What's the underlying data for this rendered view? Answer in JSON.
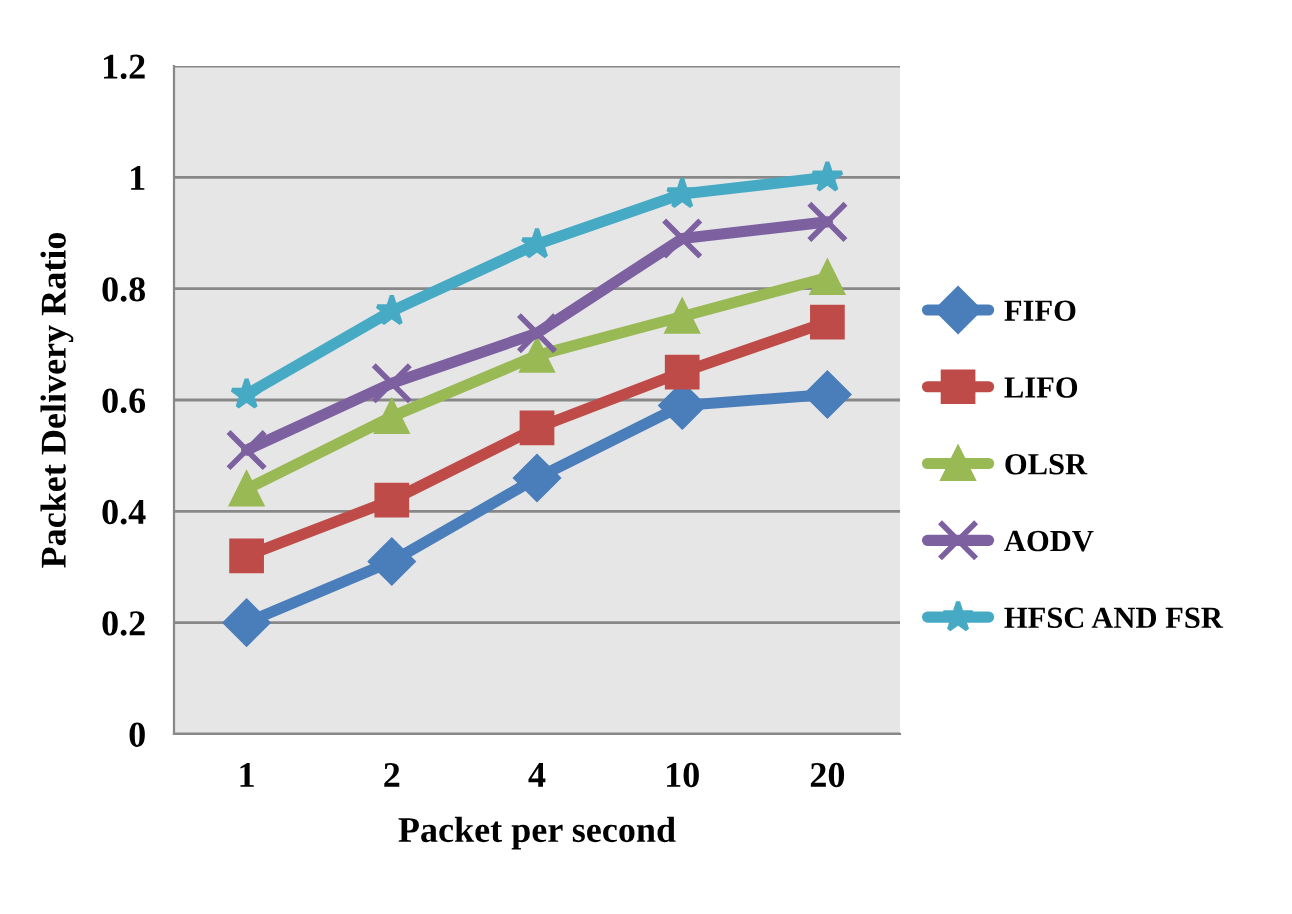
{
  "chart_data": {
    "type": "line",
    "xlabel": "Packet per second",
    "ylabel": "Packet Delivery Ratio",
    "categories": [
      "1",
      "2",
      "4",
      "10",
      "20"
    ],
    "series": [
      {
        "name": "FIFO",
        "color": "#4a7ebb",
        "marker": "diamond",
        "values": [
          0.2,
          0.31,
          0.46,
          0.59,
          0.61
        ]
      },
      {
        "name": "LIFO",
        "color": "#be4b48",
        "marker": "square",
        "values": [
          0.32,
          0.42,
          0.55,
          0.65,
          0.74
        ]
      },
      {
        "name": "OLSR",
        "color": "#98b954",
        "marker": "triangle",
        "values": [
          0.44,
          0.57,
          0.68,
          0.75,
          0.82
        ]
      },
      {
        "name": "AODV",
        "color": "#7d60a0",
        "marker": "cross",
        "values": [
          0.51,
          0.63,
          0.72,
          0.89,
          0.92
        ]
      },
      {
        "name": "HFSC AND FSR",
        "color": "#46aac5",
        "marker": "star",
        "values": [
          0.61,
          0.76,
          0.88,
          0.97,
          1.0
        ]
      }
    ],
    "ylim": [
      0,
      1.2
    ],
    "yticks": [
      0,
      0.2,
      0.4,
      0.6,
      0.8,
      1,
      1.2
    ],
    "grid": "y",
    "legend": "right",
    "line_style": "solid"
  }
}
